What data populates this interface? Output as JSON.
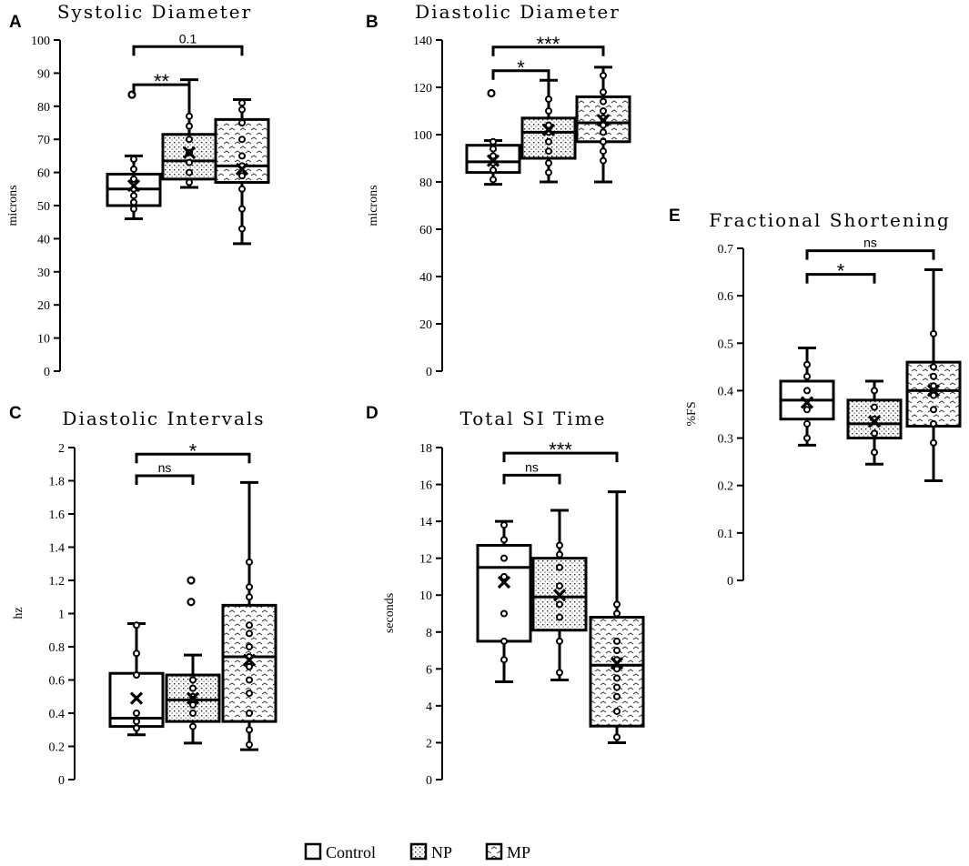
{
  "colors": {
    "ink": "#000000",
    "paper": "#ffffff"
  },
  "legend": [
    {
      "label": "Control",
      "pattern": "none"
    },
    {
      "label": "NP",
      "pattern": "dots"
    },
    {
      "label": "MP",
      "pattern": "zigzag"
    }
  ],
  "chart_data": [
    {
      "id": "A",
      "panel_label": "A",
      "type": "box",
      "title": "Systolic Diameter",
      "ylabel": "microns",
      "ylim": [
        0,
        100
      ],
      "yticks": [
        0,
        10,
        20,
        30,
        40,
        50,
        60,
        70,
        80,
        90,
        100
      ],
      "groups": [
        {
          "name": "Control",
          "pattern": "none",
          "min": 46,
          "q1": 50,
          "median": 55,
          "q3": 59.5,
          "max": 65,
          "mean": 56,
          "outliers": [
            83.5
          ],
          "points": [
            49,
            51,
            53,
            55,
            58,
            61,
            64
          ]
        },
        {
          "name": "NP",
          "pattern": "dots",
          "min": 55.5,
          "q1": 58,
          "median": 63.5,
          "q3": 71.5,
          "max": 88,
          "mean": 66,
          "outliers": [],
          "points": [
            57,
            60,
            63,
            66,
            70,
            74,
            77
          ]
        },
        {
          "name": "MP",
          "pattern": "zigzag",
          "min": 38.5,
          "q1": 57,
          "median": 62,
          "q3": 76,
          "max": 82,
          "mean": 61,
          "outliers": [],
          "points": [
            43,
            49,
            55,
            59,
            62,
            65,
            70,
            75,
            79,
            81
          ]
        }
      ],
      "brackets": [
        {
          "from": 0,
          "to": 1,
          "y": 86.5,
          "label": "**",
          "size": "large"
        },
        {
          "from": 0,
          "to": 2,
          "y": 98,
          "label": "0.1",
          "size": "small"
        }
      ]
    },
    {
      "id": "B",
      "panel_label": "B",
      "type": "box",
      "title": "Diastolic Diameter",
      "ylabel": "microns",
      "ylim": [
        0,
        140
      ],
      "yticks": [
        0,
        20,
        40,
        60,
        80,
        100,
        120,
        140
      ],
      "groups": [
        {
          "name": "Control",
          "pattern": "none",
          "min": 79,
          "q1": 84,
          "median": 88.5,
          "q3": 95.5,
          "max": 97.5,
          "mean": 89,
          "outliers": [
            117.5
          ],
          "points": [
            81,
            85,
            88,
            91,
            94,
            97
          ]
        },
        {
          "name": "NP",
          "pattern": "dots",
          "min": 80,
          "q1": 90,
          "median": 101,
          "q3": 107,
          "max": 123,
          "mean": 102,
          "outliers": [],
          "points": [
            84,
            88,
            93,
            97,
            101,
            104,
            110,
            115
          ]
        },
        {
          "name": "MP",
          "pattern": "zigzag",
          "min": 80,
          "q1": 97,
          "median": 105,
          "q3": 116,
          "max": 128.5,
          "mean": 106,
          "outliers": [],
          "points": [
            89,
            93,
            97,
            101,
            104,
            107,
            110,
            114,
            118,
            125
          ]
        }
      ],
      "brackets": [
        {
          "from": 0,
          "to": 1,
          "y": 127,
          "label": "*",
          "size": "large"
        },
        {
          "from": 0,
          "to": 2,
          "y": 137,
          "label": "***",
          "size": "large"
        }
      ]
    },
    {
      "id": "C",
      "panel_label": "C",
      "type": "box",
      "title": "Diastolic Intervals",
      "ylabel": "hz",
      "ylim": [
        0,
        2
      ],
      "yticks": [
        "0",
        "0.2",
        "0.4",
        "0.6",
        "0.8",
        "1",
        "1.2",
        "1.4",
        "1.6",
        "1.8",
        "2"
      ],
      "groups": [
        {
          "name": "Control",
          "pattern": "none",
          "min": 0.27,
          "q1": 0.32,
          "median": 0.37,
          "q3": 0.64,
          "max": 0.94,
          "mean": 0.49,
          "outliers": [],
          "points": [
            0.31,
            0.35,
            0.4,
            0.63,
            0.76,
            0.93
          ]
        },
        {
          "name": "NP",
          "pattern": "dots",
          "min": 0.22,
          "q1": 0.35,
          "median": 0.48,
          "q3": 0.63,
          "max": 0.75,
          "mean": 0.49,
          "outliers": [
            1.07,
            1.2
          ],
          "points": [
            0.32,
            0.4,
            0.45,
            0.5,
            0.55,
            0.6
          ]
        },
        {
          "name": "MP",
          "pattern": "zigzag",
          "min": 0.18,
          "q1": 0.35,
          "median": 0.74,
          "q3": 1.05,
          "max": 1.79,
          "mean": 0.72,
          "outliers": [],
          "points": [
            0.21,
            0.3,
            0.4,
            0.52,
            0.6,
            0.68,
            0.74,
            0.8,
            0.88,
            0.93,
            1.1,
            1.16,
            1.31
          ]
        }
      ],
      "brackets": [
        {
          "from": 0,
          "to": 1,
          "y": 1.83,
          "label": "ns",
          "size": "small"
        },
        {
          "from": 0,
          "to": 2,
          "y": 1.96,
          "label": "*",
          "size": "large"
        }
      ]
    },
    {
      "id": "D",
      "panel_label": "D",
      "type": "box",
      "title": "Total SI Time",
      "ylabel": "seconds",
      "ylim": [
        0,
        18
      ],
      "yticks": [
        0,
        2,
        4,
        6,
        8,
        10,
        12,
        14,
        16,
        18
      ],
      "groups": [
        {
          "name": "Control",
          "pattern": "none",
          "min": 5.3,
          "q1": 7.5,
          "median": 11.5,
          "q3": 12.7,
          "max": 14,
          "mean": 10.7,
          "outliers": [],
          "points": [
            6.5,
            7.5,
            9,
            11,
            12,
            13,
            13.8
          ]
        },
        {
          "name": "NP",
          "pattern": "dots",
          "min": 5.4,
          "q1": 8.1,
          "median": 9.9,
          "q3": 12,
          "max": 14.6,
          "mean": 10,
          "outliers": [],
          "points": [
            5.8,
            7.5,
            8.8,
            9.5,
            10.5,
            11.5,
            12.2,
            12.7
          ]
        },
        {
          "name": "MP",
          "pattern": "zigzag",
          "min": 2,
          "q1": 2.9,
          "median": 6.2,
          "q3": 8.8,
          "max": 15.6,
          "mean": 6.3,
          "outliers": [],
          "points": [
            2.3,
            3.7,
            4.5,
            5,
            5.5,
            6,
            6.5,
            7,
            7.5,
            9,
            9.5
          ]
        }
      ],
      "brackets": [
        {
          "from": 0,
          "to": 1,
          "y": 16.5,
          "label": "ns",
          "size": "small"
        },
        {
          "from": 0,
          "to": 2,
          "y": 17.7,
          "label": "***",
          "size": "large"
        }
      ]
    },
    {
      "id": "E",
      "panel_label": "E",
      "type": "box",
      "title": "Fractional Shortening",
      "ylabel": "%FS",
      "ylim": [
        0,
        0.7
      ],
      "yticks": [
        "0",
        "0.1",
        "0.2",
        "0.3",
        "0.4",
        "0.5",
        "0.6",
        "0.7"
      ],
      "groups": [
        {
          "name": "Control",
          "pattern": "none",
          "min": 0.285,
          "q1": 0.34,
          "median": 0.38,
          "q3": 0.42,
          "max": 0.49,
          "mean": 0.375,
          "outliers": [],
          "points": [
            0.3,
            0.33,
            0.36,
            0.4,
            0.43,
            0.455
          ]
        },
        {
          "name": "NP",
          "pattern": "dots",
          "min": 0.245,
          "q1": 0.3,
          "median": 0.33,
          "q3": 0.38,
          "max": 0.42,
          "mean": 0.335,
          "outliers": [],
          "points": [
            0.27,
            0.31,
            0.34,
            0.365,
            0.4
          ]
        },
        {
          "name": "MP",
          "pattern": "zigzag",
          "min": 0.21,
          "q1": 0.325,
          "median": 0.4,
          "q3": 0.46,
          "max": 0.655,
          "mean": 0.4,
          "outliers": [],
          "points": [
            0.29,
            0.33,
            0.36,
            0.39,
            0.41,
            0.43,
            0.45,
            0.52
          ]
        }
      ],
      "brackets": [
        {
          "from": 0,
          "to": 1,
          "y": 0.645,
          "label": "*",
          "size": "large"
        },
        {
          "from": 0,
          "to": 2,
          "y": 0.695,
          "label": "ns",
          "size": "small"
        }
      ]
    }
  ]
}
